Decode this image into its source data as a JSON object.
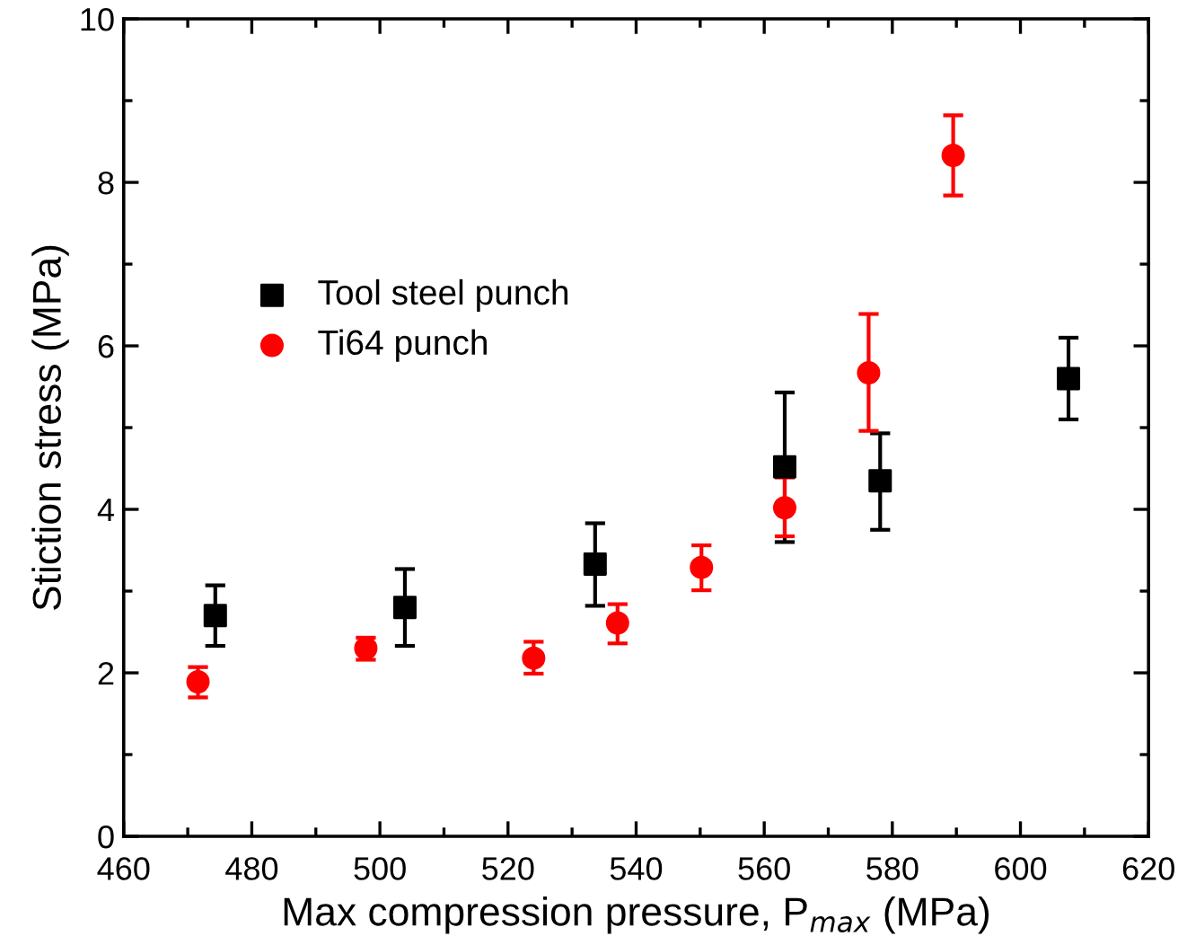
{
  "chart_data": {
    "type": "scatter",
    "xlabel": "Max compression pressure, P$_{max}$ (MPa)",
    "ylabel": "Stiction stress (MPa)",
    "xlim": [
      460,
      620
    ],
    "xticks": [
      460,
      480,
      500,
      520,
      540,
      560,
      580,
      600,
      620
    ],
    "ylim": [
      0,
      10
    ],
    "yticks": [
      0,
      2,
      4,
      6,
      8,
      10
    ],
    "grid": false,
    "legend": "top left",
    "series": [
      {
        "name": "Tool steel punch",
        "color": "#000000",
        "marker": "square",
        "x": [
          474.3,
          503.9,
          533.6,
          563.2,
          578.1,
          607.5
        ],
        "values": [
          2.7,
          2.8,
          3.33,
          4.52,
          4.35,
          5.6
        ],
        "errors": [
          [
            2.33,
            3.07
          ],
          [
            2.33,
            3.27
          ],
          [
            2.82,
            3.83
          ],
          [
            3.6,
            5.43
          ],
          [
            3.75,
            4.93
          ],
          [
            5.1,
            6.1
          ]
        ]
      },
      {
        "name": "Ti64 punch",
        "color": "#ff0000",
        "marker": "circle",
        "x": [
          471.6,
          497.8,
          524.0,
          537.1,
          550.2,
          563.2,
          576.3,
          589.5
        ],
        "values": [
          1.89,
          2.3,
          2.18,
          2.61,
          3.29,
          4.02,
          5.67,
          8.33
        ],
        "errors": [
          [
            1.7,
            2.07
          ],
          [
            2.16,
            2.43
          ],
          [
            1.99,
            2.38
          ],
          [
            2.36,
            2.84
          ],
          [
            3.01,
            3.56
          ],
          [
            3.67,
            4.39
          ],
          [
            4.96,
            6.39
          ],
          [
            7.84,
            8.82
          ]
        ]
      }
    ]
  }
}
